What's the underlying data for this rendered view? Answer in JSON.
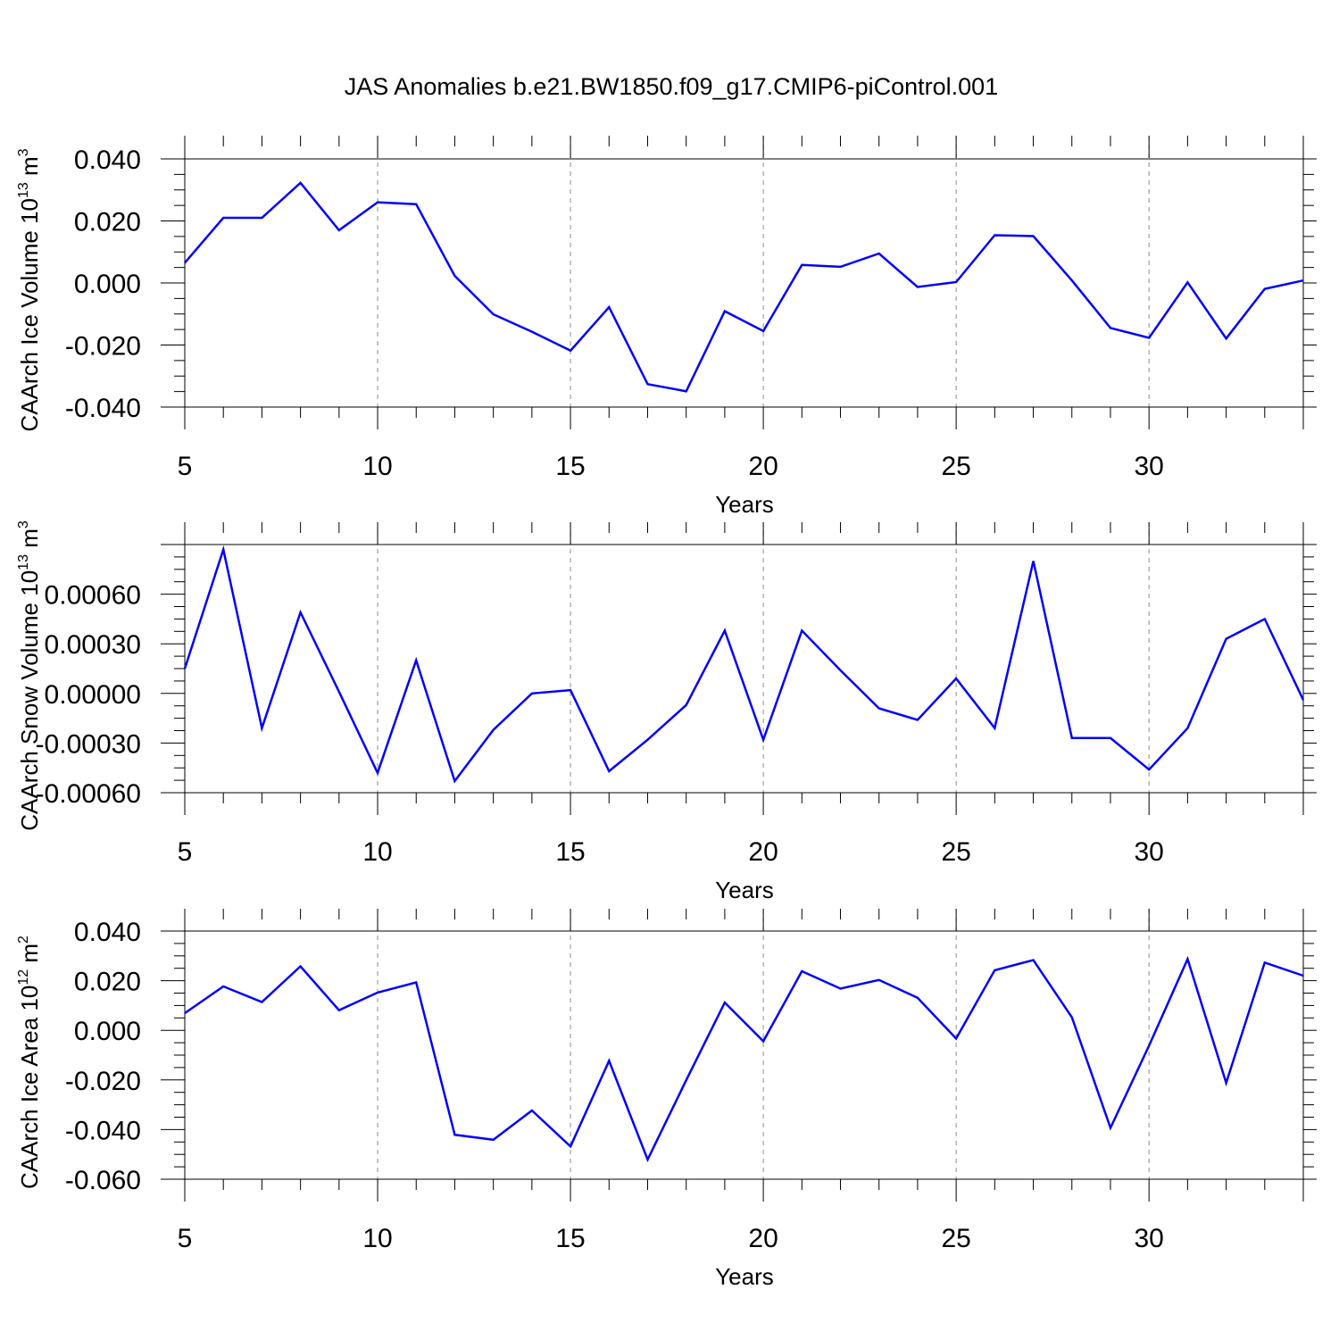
{
  "title": "JAS Anomalies b.e21.BW1850.f09_g17.CMIP6-piControl.001",
  "colors": {
    "series": "#0000ff",
    "axis": "#000000",
    "grid": "#8c8c8c"
  },
  "chart_data": [
    {
      "type": "line",
      "name": "ice-volume",
      "ylabel_main": "CAArch Ice Volume 10",
      "ylabel_exp": "13",
      "ylabel_unit": " m",
      "ylabel_unit_exp": "3",
      "xlabel": "Years",
      "xlim": [
        5,
        34
      ],
      "ylim": [
        -0.04,
        0.04
      ],
      "x_ticks": [
        5,
        10,
        15,
        20,
        25,
        30
      ],
      "y_ticks": [
        -0.04,
        -0.02,
        0.0,
        0.02,
        0.04
      ],
      "y_tick_labels": [
        "-0.040",
        "-0.020",
        "0.000",
        "0.020",
        "0.040"
      ],
      "grid_x": [
        10,
        15,
        20,
        25,
        30
      ],
      "x": [
        5,
        6,
        7,
        8,
        9,
        10,
        11,
        12,
        13,
        14,
        15,
        16,
        17,
        18,
        19,
        20,
        21,
        22,
        23,
        24,
        25,
        26,
        27,
        28,
        29,
        30,
        31,
        32,
        33,
        34
      ],
      "values": [
        0.0065,
        0.021,
        0.021,
        0.0323,
        0.017,
        0.026,
        0.0254,
        0.0023,
        -0.0101,
        -0.0157,
        -0.0218,
        -0.0078,
        -0.0326,
        -0.0349,
        -0.0091,
        -0.0155,
        0.0058,
        0.0052,
        0.0095,
        -0.0013,
        0.0003,
        0.0154,
        0.0151,
        0.0008,
        -0.0145,
        -0.0177,
        0.0002,
        -0.0179,
        -0.0019,
        0.0008
      ]
    },
    {
      "type": "line",
      "name": "snow-volume",
      "ylabel_main": "CAArch Snow Volume 10",
      "ylabel_exp": "13",
      "ylabel_unit": " m",
      "ylabel_unit_exp": "3",
      "xlabel": "Years",
      "xlim": [
        5,
        34
      ],
      "ylim": [
        -0.0006,
        0.0009
      ],
      "x_ticks": [
        5,
        10,
        15,
        20,
        25,
        30
      ],
      "y_ticks": [
        -0.0006,
        -0.0003,
        0.0,
        0.0003,
        0.0006
      ],
      "y_tick_labels": [
        "-0.00060",
        "-0.00030",
        "0.00000",
        "0.00030",
        "0.00060"
      ],
      "grid_x": [
        10,
        15,
        20,
        25,
        30
      ],
      "x": [
        5,
        6,
        7,
        8,
        9,
        10,
        11,
        12,
        13,
        14,
        15,
        16,
        17,
        18,
        19,
        20,
        21,
        22,
        23,
        24,
        25,
        26,
        27,
        28,
        29,
        30,
        31,
        32,
        33,
        34
      ],
      "values": [
        0.00015,
        0.00087,
        -0.00021,
        0.00049,
        1e-05,
        -0.00048,
        0.0002,
        -0.00053,
        -0.00022,
        0.0,
        2e-05,
        -0.00047,
        -0.00028,
        -7e-05,
        0.00038,
        -0.00028,
        0.00038,
        0.00014,
        -9e-05,
        -0.00016,
        9e-05,
        -0.00021,
        0.0008,
        -0.00027,
        -0.00027,
        -0.00046,
        -0.00021,
        0.00033,
        0.00045,
        -4e-05
      ]
    },
    {
      "type": "line",
      "name": "ice-area",
      "ylabel_main": "CAArch Ice Area 10",
      "ylabel_exp": "12",
      "ylabel_unit": " m",
      "ylabel_unit_exp": "2",
      "xlabel": "Years",
      "xlim": [
        5,
        34
      ],
      "ylim": [
        -0.06,
        0.04
      ],
      "x_ticks": [
        5,
        10,
        15,
        20,
        25,
        30
      ],
      "y_ticks": [
        -0.06,
        -0.04,
        -0.02,
        0.0,
        0.02,
        0.04
      ],
      "y_tick_labels": [
        "-0.060",
        "-0.040",
        "-0.020",
        "0.000",
        "0.020",
        "0.040"
      ],
      "grid_x": [
        10,
        15,
        20,
        25,
        30
      ],
      "x": [
        5,
        6,
        7,
        8,
        9,
        10,
        11,
        12,
        13,
        14,
        15,
        16,
        17,
        18,
        19,
        20,
        21,
        22,
        23,
        24,
        25,
        26,
        27,
        28,
        29,
        30,
        31,
        32,
        33,
        34
      ],
      "values": [
        0.0069,
        0.0177,
        0.0114,
        0.0258,
        0.0081,
        0.0152,
        0.0193,
        -0.0421,
        -0.0441,
        -0.0323,
        -0.0468,
        -0.0123,
        -0.0521,
        -0.0201,
        0.0112,
        -0.0044,
        0.0238,
        0.0168,
        0.0203,
        0.0131,
        -0.0033,
        0.0242,
        0.0283,
        0.0052,
        -0.0393,
        -0.0062,
        0.0287,
        -0.0212,
        0.0273,
        0.022
      ]
    }
  ]
}
